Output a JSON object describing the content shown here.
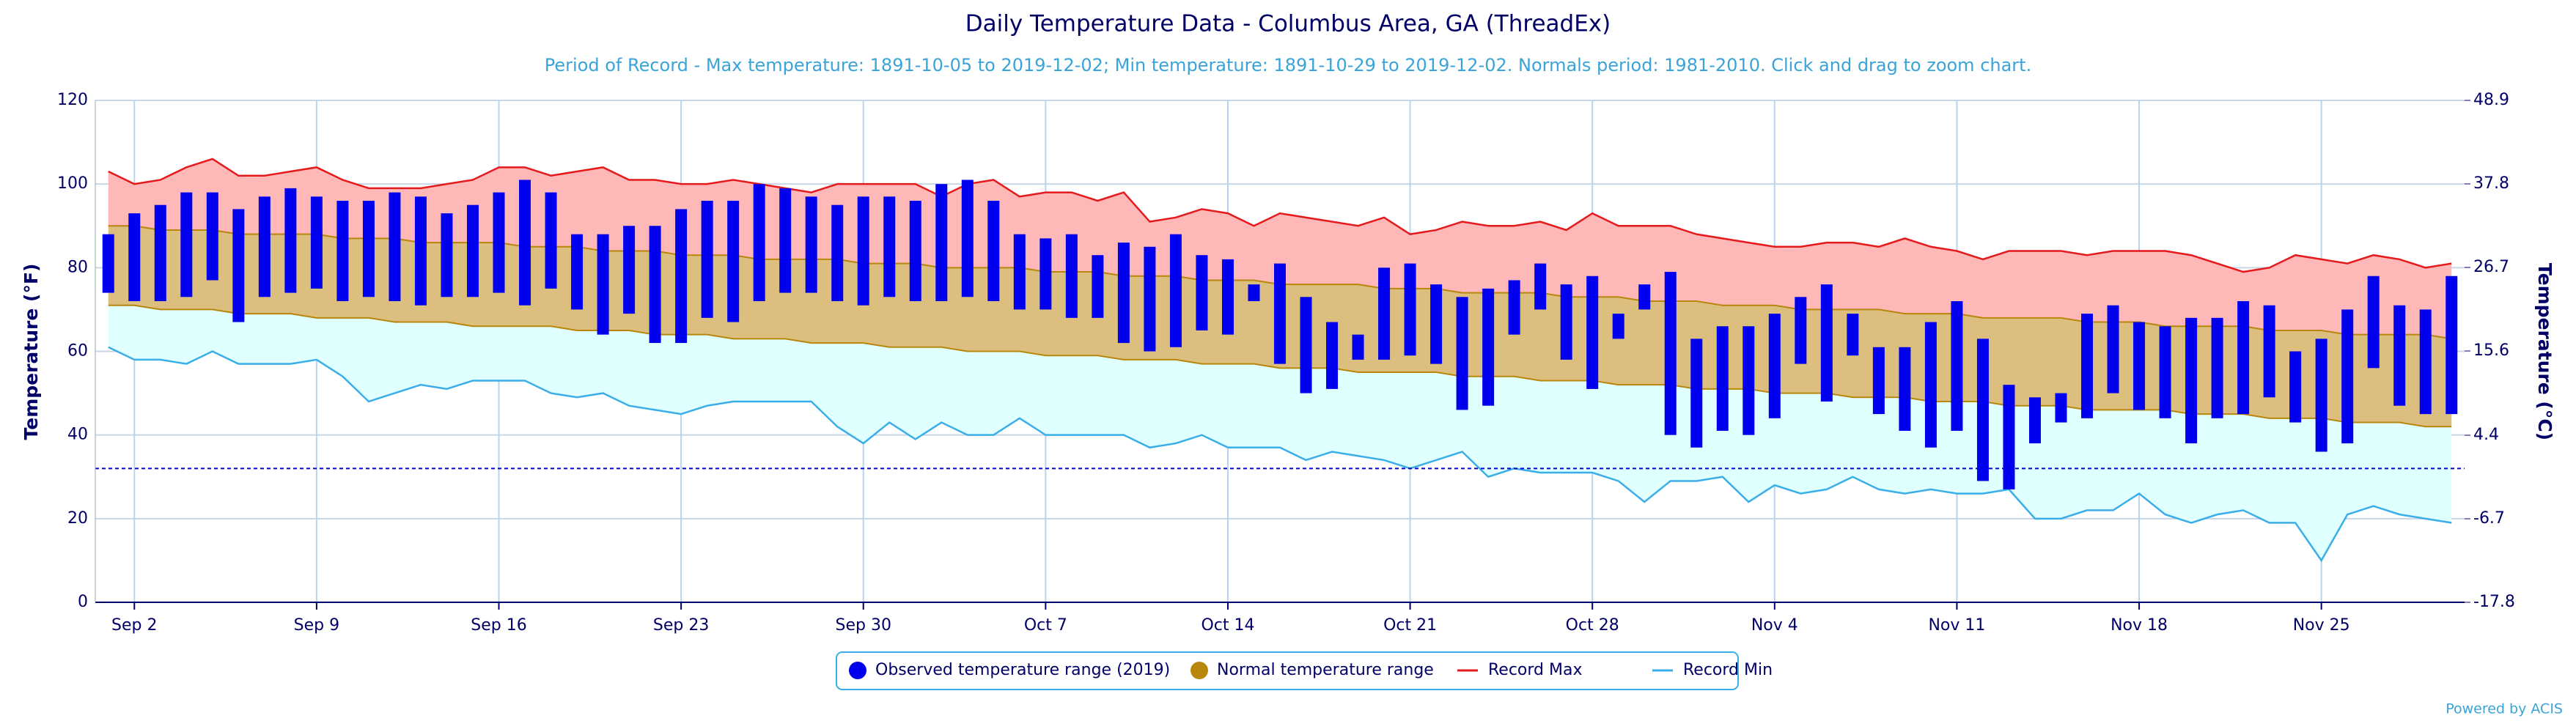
{
  "chart_data": {
    "type": "temperature-range",
    "title": "Daily Temperature Data - Columbus Area, GA (ThreadEx)",
    "subtitle": "Period of Record - Max temperature: 1891-10-05 to 2019-12-02; Min temperature: 1891-10-29 to 2019-12-02. Normals period: 1981-2010. Click and drag to zoom chart.",
    "y_label": "Temperature (°F)",
    "y2_label": "Temperature (°C)",
    "footer": "Powered by ACIS",
    "categories": [
      null,
      "Sep 2",
      null,
      null,
      null,
      null,
      null,
      null,
      "Sep 9",
      null,
      null,
      null,
      null,
      null,
      null,
      "Sep 16",
      null,
      null,
      null,
      null,
      null,
      null,
      "Sep 23",
      null,
      null,
      null,
      null,
      null,
      null,
      "Sep 30",
      null,
      null,
      null,
      null,
      null,
      null,
      "Oct 7",
      null,
      null,
      null,
      null,
      null,
      null,
      "Oct 14",
      null,
      null,
      null,
      null,
      null,
      null,
      "Oct 21",
      null,
      null,
      null,
      null,
      null,
      null,
      "Oct 28",
      null,
      null,
      null,
      null,
      null,
      null,
      "Nov 4",
      null,
      null,
      null,
      null,
      null,
      null,
      "Nov 11",
      null,
      null,
      null,
      null,
      null,
      null,
      "Nov 18",
      null,
      null,
      null,
      null,
      null,
      null,
      "Nov 25",
      null,
      null,
      null,
      null,
      null
    ],
    "ylim": [
      0,
      120
    ],
    "yticks": [
      0,
      20,
      40,
      60,
      80,
      100,
      120
    ],
    "y2lim": [
      -17.8,
      48.9
    ],
    "y2ticks": [
      -17.8,
      -6.7,
      4.4,
      15.6,
      26.7,
      37.8,
      48.9
    ],
    "grid": true,
    "freezing_line": 32,
    "series": [
      {
        "name": "Observed temperature range (2019)",
        "color": "#0000ee",
        "high": [
          88,
          93,
          95,
          98,
          98,
          94,
          97,
          99,
          97,
          96,
          96,
          98,
          97,
          93,
          95,
          98,
          101,
          98,
          88,
          88,
          90,
          90,
          94,
          96,
          96,
          100,
          99,
          97,
          95,
          97,
          97,
          96,
          100,
          101,
          96,
          88,
          87,
          88,
          83,
          86,
          85,
          88,
          83,
          82,
          76,
          81,
          73,
          67,
          64,
          80,
          81,
          76,
          73,
          75,
          77,
          81,
          76,
          78,
          69,
          76,
          79,
          63,
          66,
          66,
          69,
          73,
          76,
          69,
          61,
          61,
          67,
          72,
          63,
          52,
          49,
          50,
          69,
          71,
          67,
          66,
          68,
          68,
          72,
          71,
          60,
          63,
          70,
          78,
          71,
          70,
          78
        ],
        "low": [
          74,
          72,
          72,
          73,
          77,
          67,
          73,
          74,
          75,
          72,
          73,
          72,
          71,
          73,
          73,
          74,
          71,
          75,
          70,
          64,
          69,
          62,
          62,
          68,
          67,
          72,
          74,
          74,
          72,
          71,
          73,
          72,
          72,
          73,
          72,
          70,
          70,
          68,
          68,
          62,
          60,
          61,
          65,
          64,
          72,
          57,
          50,
          51,
          58,
          58,
          59,
          57,
          46,
          47,
          64,
          70,
          58,
          51,
          63,
          70,
          40,
          37,
          41,
          40,
          44,
          57,
          48,
          59,
          45,
          41,
          37,
          41,
          29,
          27,
          38,
          43,
          44,
          50,
          46,
          44,
          38,
          44,
          45,
          49,
          43,
          36,
          38,
          56,
          47,
          45,
          45
        ]
      },
      {
        "name": "Normal temperature range",
        "color": "#b8860b",
        "high": [
          90,
          90,
          89,
          89,
          89,
          88,
          88,
          88,
          88,
          87,
          87,
          87,
          86,
          86,
          86,
          86,
          85,
          85,
          85,
          84,
          84,
          84,
          83,
          83,
          83,
          82,
          82,
          82,
          82,
          81,
          81,
          81,
          80,
          80,
          80,
          80,
          79,
          79,
          79,
          78,
          78,
          78,
          77,
          77,
          77,
          76,
          76,
          76,
          76,
          75,
          75,
          75,
          74,
          74,
          74,
          74,
          73,
          73,
          73,
          72,
          72,
          72,
          71,
          71,
          71,
          70,
          70,
          70,
          70,
          69,
          69,
          69,
          68,
          68,
          68,
          68,
          67,
          67,
          67,
          66,
          66,
          66,
          66,
          65,
          65,
          65,
          64,
          64,
          64,
          64,
          63
        ],
        "low": [
          71,
          71,
          70,
          70,
          70,
          69,
          69,
          69,
          68,
          68,
          68,
          67,
          67,
          67,
          66,
          66,
          66,
          66,
          65,
          65,
          65,
          64,
          64,
          64,
          63,
          63,
          63,
          62,
          62,
          62,
          61,
          61,
          61,
          60,
          60,
          60,
          59,
          59,
          59,
          58,
          58,
          58,
          57,
          57,
          57,
          56,
          56,
          56,
          55,
          55,
          55,
          55,
          54,
          54,
          54,
          53,
          53,
          53,
          52,
          52,
          52,
          51,
          51,
          51,
          50,
          50,
          50,
          49,
          49,
          49,
          48,
          48,
          48,
          47,
          47,
          47,
          46,
          46,
          46,
          46,
          45,
          45,
          45,
          44,
          44,
          44,
          43,
          43,
          43,
          42,
          42
        ]
      },
      {
        "name": "Record Max",
        "color": "#e41a1c",
        "values": [
          103,
          100,
          101,
          104,
          106,
          102,
          102,
          103,
          104,
          101,
          99,
          99,
          99,
          100,
          101,
          104,
          104,
          102,
          103,
          104,
          101,
          101,
          100,
          100,
          101,
          100,
          99,
          98,
          100,
          100,
          100,
          100,
          97,
          100,
          101,
          97,
          98,
          98,
          96,
          98,
          91,
          92,
          94,
          93,
          90,
          93,
          92,
          91,
          90,
          92,
          88,
          89,
          91,
          90,
          90,
          91,
          89,
          93,
          90,
          90,
          90,
          88,
          87,
          86,
          85,
          85,
          86,
          86,
          85,
          87,
          85,
          84,
          82,
          84,
          84,
          84,
          83,
          84,
          84,
          84,
          83,
          81,
          79,
          80,
          83,
          82,
          81,
          83,
          82,
          80,
          81
        ]
      },
      {
        "name": "Record Min",
        "color": "#3aaee8",
        "values": [
          61,
          58,
          58,
          57,
          60,
          57,
          57,
          57,
          58,
          54,
          48,
          50,
          52,
          51,
          53,
          53,
          53,
          50,
          49,
          50,
          47,
          46,
          45,
          47,
          48,
          48,
          48,
          48,
          42,
          38,
          43,
          39,
          43,
          40,
          40,
          44,
          40,
          40,
          40,
          40,
          37,
          38,
          40,
          37,
          37,
          37,
          34,
          36,
          35,
          34,
          32,
          34,
          36,
          30,
          32,
          31,
          31,
          31,
          29,
          24,
          29,
          29,
          30,
          24,
          28,
          26,
          27,
          30,
          27,
          26,
          27,
          26,
          26,
          27,
          20,
          20,
          22,
          22,
          26,
          21,
          19,
          21,
          22,
          19,
          19,
          10,
          21,
          23,
          21,
          20,
          19
        ]
      }
    ]
  }
}
